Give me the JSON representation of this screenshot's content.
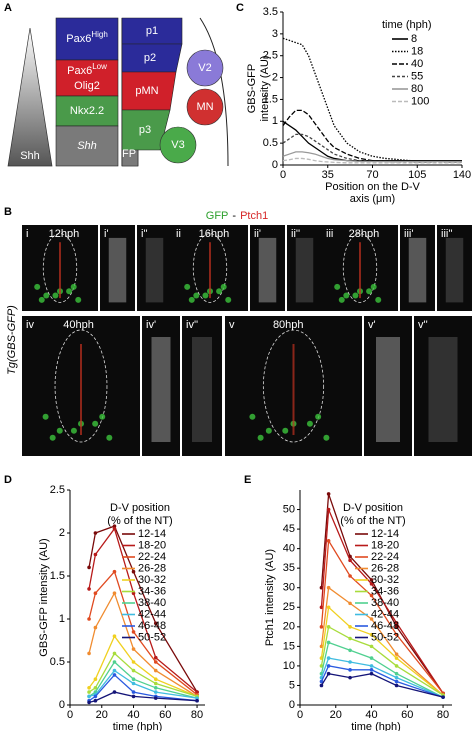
{
  "panel_labels": [
    "A",
    "B",
    "C",
    "D",
    "E"
  ],
  "diagram": {
    "gradient_label": "Shh",
    "domains": [
      {
        "label": "Pax6",
        "sup": "High"
      },
      {
        "label": "Pax6",
        "sup": "Low",
        "line2": "Olig2"
      },
      {
        "label": "Nkx2.2"
      },
      {
        "label": "Shh"
      }
    ],
    "progenitors": [
      "p1",
      "p2",
      "pMN",
      "p3",
      "FP"
    ],
    "neurons": [
      "V2",
      "MN",
      "V3"
    ]
  },
  "images": {
    "title": [
      "GFP",
      "-",
      "Ptch1"
    ],
    "side_label": "Tg(GBS-GFP)",
    "panels": [
      {
        "id": "i",
        "time": "12hph"
      },
      {
        "id": "i'"
      },
      {
        "id": "i''"
      },
      {
        "id": "ii",
        "time": "16hph"
      },
      {
        "id": "ii'"
      },
      {
        "id": "ii''"
      },
      {
        "id": "iii",
        "time": "28hph"
      },
      {
        "id": "iii'"
      },
      {
        "id": "iii''"
      },
      {
        "id": "iv",
        "time": "40hph"
      },
      {
        "id": "iv'"
      },
      {
        "id": "iv''"
      },
      {
        "id": "v",
        "time": "80hph"
      },
      {
        "id": "v'"
      },
      {
        "id": "v''"
      }
    ]
  },
  "chart_data": [
    {
      "type": "line",
      "ylabel": [
        "GBS-GFP",
        "intensity (AU)"
      ],
      "xlabel": [
        "Position on the D-V",
        "axis (μm)"
      ],
      "legend_title": "time (hph)",
      "x": [
        0,
        5,
        10,
        15,
        20,
        25,
        30,
        35,
        40,
        50,
        60,
        70,
        80,
        100,
        120,
        140
      ],
      "xlim": [
        0,
        140
      ],
      "xticks": [
        0,
        35,
        70,
        105,
        140
      ],
      "ylim": [
        0,
        3.5
      ],
      "yticks": [
        0,
        0.5,
        1,
        1.5,
        2,
        2.5,
        3,
        3.5
      ],
      "series": [
        {
          "name": "8",
          "color": "#000000",
          "dash": "none",
          "values": [
            1.0,
            0.9,
            0.8,
            0.65,
            0.5,
            0.4,
            0.3,
            0.2,
            0.15,
            0.1,
            0.1,
            0.1,
            0.1,
            0.1,
            0.1,
            0.1
          ]
        },
        {
          "name": "18",
          "color": "#000000",
          "dash": "1.5,1.5",
          "values": [
            2.9,
            2.85,
            2.8,
            2.75,
            2.5,
            2.1,
            1.7,
            1.3,
            0.9,
            0.5,
            0.3,
            0.2,
            0.15,
            0.1,
            0.1,
            0.1
          ]
        },
        {
          "name": "40",
          "color": "#000000",
          "dash": "5,2",
          "values": [
            0.9,
            1.1,
            1.25,
            1.25,
            1.15,
            0.95,
            0.75,
            0.55,
            0.4,
            0.25,
            0.15,
            0.1,
            0.1,
            0.08,
            0.08,
            0.08
          ]
        },
        {
          "name": "55",
          "color": "#444444",
          "dash": "3,2",
          "values": [
            0.5,
            0.6,
            0.7,
            0.7,
            0.65,
            0.55,
            0.45,
            0.35,
            0.25,
            0.15,
            0.1,
            0.08,
            0.08,
            0.07,
            0.07,
            0.07
          ]
        },
        {
          "name": "80",
          "color": "#999999",
          "dash": "none",
          "values": [
            0.2,
            0.25,
            0.3,
            0.3,
            0.28,
            0.25,
            0.2,
            0.15,
            0.12,
            0.1,
            0.08,
            0.08,
            0.08,
            0.08,
            0.08,
            0.08
          ]
        },
        {
          "name": "100",
          "color": "#bbbbbb",
          "dash": "4,2",
          "values": [
            0.1,
            0.12,
            0.15,
            0.15,
            0.13,
            0.1,
            0.08,
            0.07,
            0.06,
            0.05,
            0.05,
            0.05,
            0.05,
            0.05,
            0.05,
            0.05
          ]
        }
      ]
    },
    {
      "type": "line",
      "ylabel": [
        "GBS-GFP intensity (AU)"
      ],
      "xlabel": [
        "time (hph)"
      ],
      "legend_title": [
        "D-V position",
        "(% of the NT)"
      ],
      "markers": true,
      "x": [
        12,
        16,
        28,
        40,
        54,
        80
      ],
      "xlim": [
        0,
        85
      ],
      "xticks": [
        0,
        20,
        40,
        60,
        80
      ],
      "ylim": [
        0,
        2.5
      ],
      "yticks": [
        0,
        0.5,
        1,
        1.5,
        2,
        2.5
      ],
      "series": [
        {
          "name": "12-14",
          "color": "#7a0a0a",
          "values": [
            1.6,
            2.0,
            2.08,
            1.55,
            0.95,
            0.15
          ]
        },
        {
          "name": "18-20",
          "color": "#b81a1a",
          "values": [
            1.35,
            1.75,
            2.05,
            1.3,
            0.55,
            0.15
          ]
        },
        {
          "name": "22-24",
          "color": "#e04a20",
          "values": [
            1.0,
            1.3,
            1.55,
            0.85,
            0.5,
            0.12
          ]
        },
        {
          "name": "26-28",
          "color": "#f08c30",
          "values": [
            0.6,
            0.9,
            1.3,
            0.65,
            0.4,
            0.1
          ]
        },
        {
          "name": "30-32",
          "color": "#f0d020",
          "values": [
            0.2,
            0.3,
            0.8,
            0.5,
            0.3,
            0.1
          ]
        },
        {
          "name": "34-36",
          "color": "#a8dc3c",
          "values": [
            0.15,
            0.2,
            0.6,
            0.4,
            0.25,
            0.1
          ]
        },
        {
          "name": "38-40",
          "color": "#50d090",
          "values": [
            0.1,
            0.15,
            0.5,
            0.3,
            0.2,
            0.08
          ]
        },
        {
          "name": "42-44",
          "color": "#40bce0",
          "values": [
            0.1,
            0.12,
            0.4,
            0.25,
            0.15,
            0.08
          ]
        },
        {
          "name": "46-48",
          "color": "#2a5ae0",
          "values": [
            0.05,
            0.1,
            0.35,
            0.15,
            0.1,
            0.05
          ]
        },
        {
          "name": "50-52",
          "color": "#141478",
          "values": [
            0.03,
            0.05,
            0.15,
            0.1,
            0.08,
            0.05
          ]
        }
      ]
    },
    {
      "type": "line",
      "ylabel": [
        "Ptch1 intensity (AU)"
      ],
      "xlabel": [
        "time (hph)"
      ],
      "legend_title": [
        "D-V position",
        "(% of the NT)"
      ],
      "markers": true,
      "x": [
        12,
        16,
        28,
        40,
        54,
        80
      ],
      "xlim": [
        0,
        85
      ],
      "xticks": [
        0,
        20,
        40,
        60,
        80
      ],
      "ylim": [
        0,
        55
      ],
      "yticks": [
        0,
        5,
        10,
        15,
        20,
        25,
        30,
        35,
        40,
        45,
        50
      ],
      "series": [
        {
          "name": "12-14",
          "color": "#7a0a0a",
          "values": [
            30,
            54,
            38,
            32,
            20,
            3
          ]
        },
        {
          "name": "18-20",
          "color": "#b81a1a",
          "values": [
            25,
            50,
            37,
            31,
            21,
            3
          ]
        },
        {
          "name": "22-24",
          "color": "#e04a20",
          "values": [
            20,
            42,
            33,
            28,
            18,
            3
          ]
        },
        {
          "name": "26-28",
          "color": "#f08c30",
          "values": [
            15,
            30,
            26,
            22,
            13,
            2.5
          ]
        },
        {
          "name": "30-32",
          "color": "#f0d020",
          "values": [
            12,
            25,
            20,
            18,
            12,
            2.5
          ]
        },
        {
          "name": "34-36",
          "color": "#a8dc3c",
          "values": [
            10,
            20,
            17,
            15,
            10,
            2.5
          ]
        },
        {
          "name": "38-40",
          "color": "#50d090",
          "values": [
            8,
            16,
            14,
            12,
            8,
            2
          ]
        },
        {
          "name": "42-44",
          "color": "#40bce0",
          "values": [
            7,
            12,
            11,
            10,
            7,
            2
          ]
        },
        {
          "name": "46-48",
          "color": "#2a5ae0",
          "values": [
            6,
            10,
            9,
            9,
            6,
            2
          ]
        },
        {
          "name": "50-52",
          "color": "#141478",
          "values": [
            5,
            8,
            7,
            8,
            5,
            2
          ]
        }
      ]
    }
  ]
}
